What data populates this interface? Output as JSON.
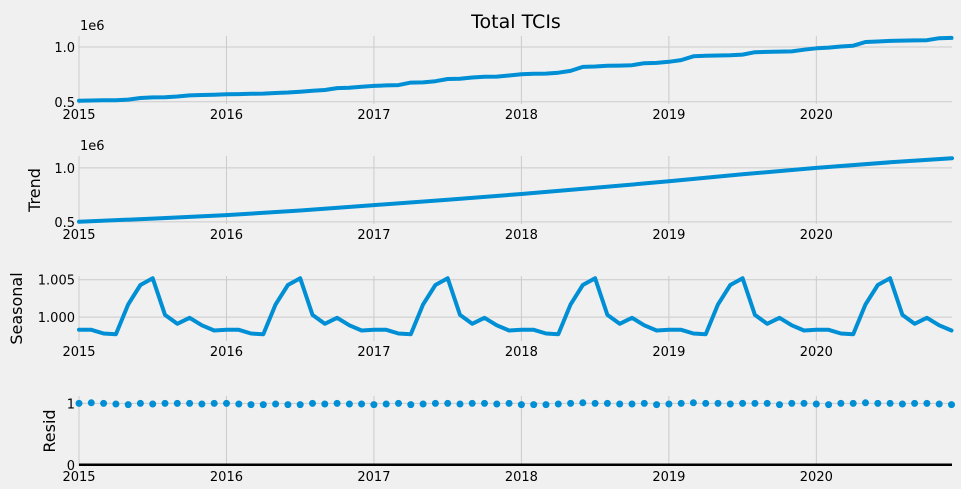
{
  "chart_data": [
    {
      "type": "line",
      "title": "Total TCIs",
      "ylabel": "",
      "offset_label": "1e6",
      "x_ticks": [
        "2015",
        "2016",
        "2017",
        "2018",
        "2019",
        "2020"
      ],
      "y_ticks": [
        "0.5",
        "1.0"
      ],
      "x_range": [
        2015.0,
        2020.92
      ],
      "ylim": [
        0.48,
        1.1
      ],
      "series": [
        {
          "x": [
            2015.0,
            2015.0833,
            2015.1667,
            2015.25,
            2015.3333,
            2015.4167,
            2015.5,
            2015.5833,
            2015.6667,
            2015.75,
            2015.8333,
            2015.9167,
            2016.0,
            2016.0833,
            2016.1667,
            2016.25,
            2016.3333,
            2016.4167,
            2016.5,
            2016.5833,
            2016.6667,
            2016.75,
            2016.8333,
            2016.9167,
            2017.0,
            2017.0833,
            2017.1667,
            2017.25,
            2017.3333,
            2017.4167,
            2017.5,
            2017.5833,
            2017.6667,
            2017.75,
            2017.8333,
            2017.9167,
            2018.0,
            2018.0833,
            2018.1667,
            2018.25,
            2018.3333,
            2018.4167,
            2018.5,
            2018.5833,
            2018.6667,
            2018.75,
            2018.8333,
            2018.9167,
            2019.0,
            2019.0833,
            2019.1667,
            2019.25,
            2019.3333,
            2019.4167,
            2019.5,
            2019.5833,
            2019.6667,
            2019.75,
            2019.8333,
            2019.9167,
            2020.0,
            2020.0833,
            2020.1667,
            2020.25,
            2020.3333,
            2020.4167,
            2020.5,
            2020.5833,
            2020.6667,
            2020.75,
            2020.8333,
            2020.9167
          ],
          "y": [
            0.51,
            0.512,
            0.514,
            0.515,
            0.52,
            0.535,
            0.54,
            0.542,
            0.548,
            0.558,
            0.562,
            0.565,
            0.568,
            0.57,
            0.573,
            0.575,
            0.58,
            0.585,
            0.592,
            0.6,
            0.608,
            0.625,
            0.628,
            0.638,
            0.645,
            0.65,
            0.652,
            0.675,
            0.677,
            0.688,
            0.708,
            0.71,
            0.722,
            0.728,
            0.73,
            0.74,
            0.752,
            0.755,
            0.757,
            0.765,
            0.782,
            0.818,
            0.822,
            0.828,
            0.83,
            0.834,
            0.852,
            0.855,
            0.865,
            0.88,
            0.915,
            0.92,
            0.922,
            0.925,
            0.93,
            0.952,
            0.955,
            0.958,
            0.96,
            0.975,
            0.988,
            0.994,
            1.004,
            1.012,
            1.045,
            1.05,
            1.055,
            1.058,
            1.06,
            1.062,
            1.08,
            1.083
          ]
        }
      ]
    },
    {
      "type": "line",
      "title": "",
      "ylabel": "Trend",
      "offset_label": "1e6",
      "x_ticks": [
        "2015",
        "2016",
        "2017",
        "2018",
        "2019",
        "2020"
      ],
      "y_ticks": [
        "0.5",
        "1.0"
      ],
      "x_range": [
        2015.0,
        2020.92
      ],
      "ylim": [
        0.48,
        1.11
      ],
      "series": [
        {
          "x": [
            2015.0,
            2015.5,
            2016.0,
            2016.5,
            2017.0,
            2017.5,
            2018.0,
            2018.5,
            2019.0,
            2019.5,
            2020.0,
            2020.5,
            2020.92
          ],
          "y": [
            0.5,
            0.53,
            0.562,
            0.605,
            0.655,
            0.705,
            0.758,
            0.815,
            0.876,
            0.94,
            1.0,
            1.052,
            1.09
          ]
        }
      ]
    },
    {
      "type": "line",
      "title": "",
      "ylabel": "Seasonal",
      "offset_label": "",
      "x_ticks": [
        "2015",
        "2016",
        "2017",
        "2018",
        "2019",
        "2020"
      ],
      "y_ticks": [
        "1.000",
        "1.005"
      ],
      "x_range": [
        2015.0,
        2020.92
      ],
      "ylim": [
        0.9968,
        1.0055
      ],
      "seasonal_pattern": [
        0.9983,
        0.9983,
        0.9978,
        0.9977,
        1.0017,
        1.0043,
        1.0052,
        1.0003,
        0.9991,
        0.9999,
        0.9989,
        0.9982
      ]
    },
    {
      "type": "scatter",
      "title": "",
      "ylabel": "Resid",
      "offset_label": "",
      "x_ticks": [
        "2015",
        "2016",
        "2017",
        "2018",
        "2019",
        "2020"
      ],
      "y_ticks": [
        "0",
        "1"
      ],
      "x_range": [
        2015.0,
        2020.92
      ],
      "ylim": [
        -0.02,
        1.12
      ],
      "residual_values": [
        1.0,
        1.01,
        1.0,
        0.99,
        0.98,
        1.0,
        0.99,
        1.0,
        1.0,
        1.0,
        0.99,
        1.0,
        1.0,
        0.99,
        0.98,
        0.98,
        0.99,
        0.98,
        0.98,
        1.0,
        0.99,
        1.0,
        0.99,
        0.99,
        0.98,
        0.99,
        1.0,
        0.98,
        0.99,
        1.0,
        1.0,
        0.99,
        1.0,
        1.0,
        0.99,
        1.0,
        0.98,
        0.98,
        0.98,
        0.99,
        1.0,
        1.01,
        1.0,
        1.0,
        0.99,
        0.99,
        1.0,
        0.98,
        0.99,
        1.0,
        1.01,
        1.0,
        1.0,
        0.99,
        1.0,
        1.0,
        1.0,
        0.98,
        1.0,
        1.0,
        0.99,
        0.98,
        1.0,
        1.0,
        1.01,
        1.0,
        1.0,
        0.99,
        1.0,
        1.0,
        0.99,
        0.98
      ],
      "baseline": 0
    }
  ],
  "colors": {
    "line": "#008fd5",
    "background": "#f0f0f0",
    "grid": "#cbcbcb",
    "baseline": "#000000"
  }
}
